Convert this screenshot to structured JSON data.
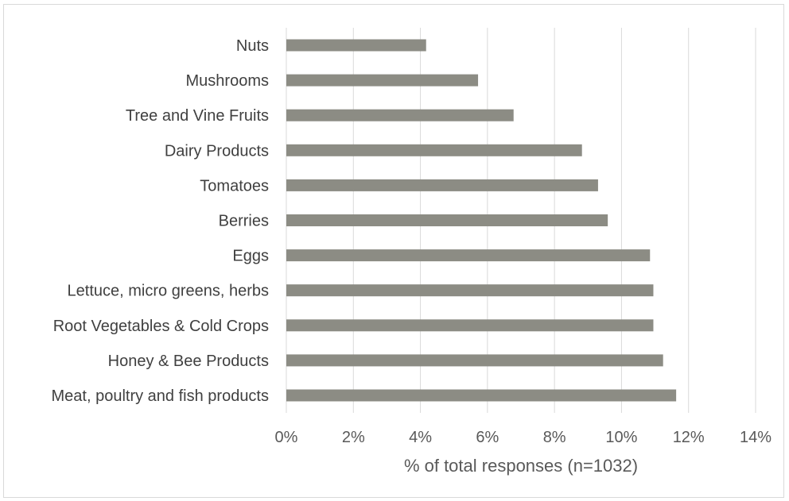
{
  "chart_data": {
    "type": "bar",
    "orientation": "horizontal",
    "categories": [
      "Nuts",
      "Mushrooms",
      "Tree and Vine Fruits",
      "Dairy Products",
      "Tomatoes",
      "Berries",
      "Eggs",
      "Lettuce, micro greens, herbs",
      "Root Vegetables & Cold Crops",
      "Honey & Bee Products",
      "Meat, poultry and fish products"
    ],
    "values": [
      4.17,
      5.72,
      6.78,
      8.82,
      9.3,
      9.59,
      10.85,
      10.95,
      10.95,
      11.24,
      11.63
    ],
    "xlabel": "% of total responses (n=1032)",
    "ylabel": "",
    "xlim": [
      0,
      14
    ],
    "xticks": [
      0,
      2,
      4,
      6,
      8,
      10,
      12,
      14
    ],
    "tick_labels": [
      "0%",
      "2%",
      "4%",
      "6%",
      "8%",
      "10%",
      "12%",
      "14%"
    ],
    "grid": "vertical",
    "legend": "none",
    "bar_color": "#8c8c84",
    "grid_color": "#d9d9d9"
  }
}
